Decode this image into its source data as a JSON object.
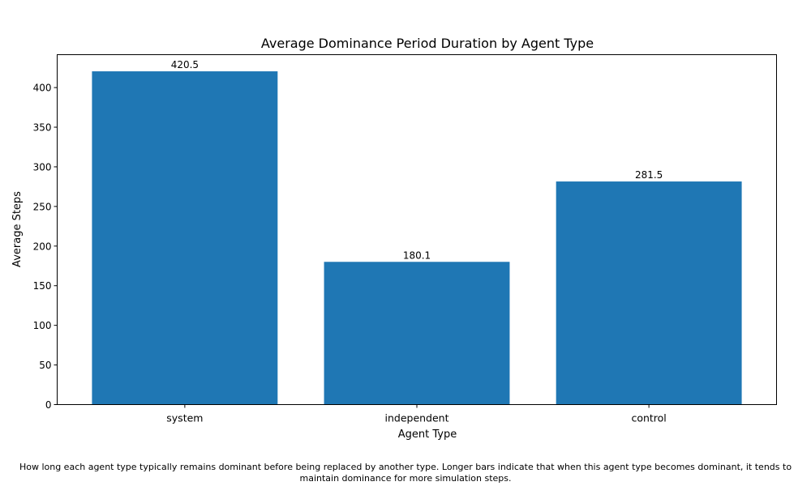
{
  "chart_data": {
    "type": "bar",
    "title": "Average Dominance Period Duration by Agent Type",
    "xlabel": "Agent Type",
    "ylabel": "Average Steps",
    "categories": [
      "system",
      "independent",
      "control"
    ],
    "values": [
      420.5,
      180.1,
      281.5
    ],
    "value_labels": [
      "420.5",
      "180.1",
      "281.5"
    ],
    "yticks": [
      0,
      50,
      100,
      150,
      200,
      250,
      300,
      350,
      400
    ],
    "ylim": [
      0,
      441.5
    ],
    "grid": false,
    "bar_color": "#1f77b4"
  },
  "caption": "How long each agent type typically remains dominant before being replaced by another type. Longer bars indicate that when this agent type becomes dominant, it tends to maintain dominance for more simulation steps."
}
